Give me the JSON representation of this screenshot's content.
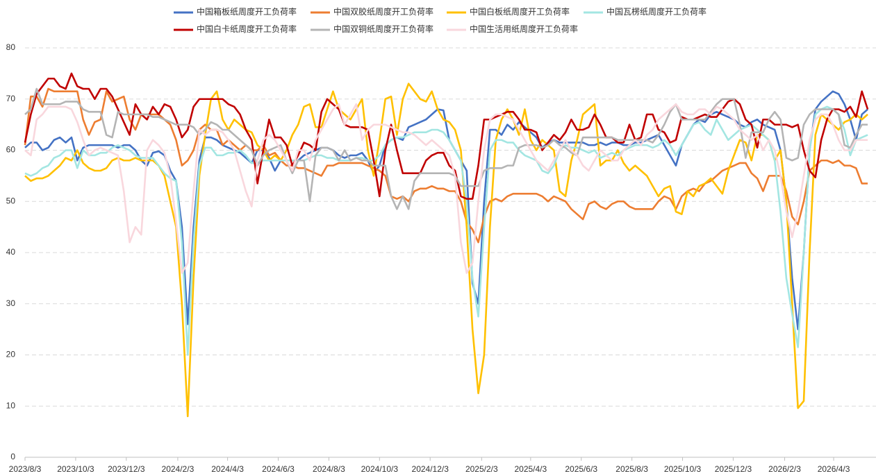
{
  "chart_data": {
    "type": "line",
    "grid": true,
    "legend": "top",
    "xlim": [
      "2023/8/3",
      "2026/5/24"
    ],
    "xticks": [
      "2023/8/3",
      "2023/10/3",
      "2023/12/3",
      "2024/2/3",
      "2024/4/3",
      "2024/6/3",
      "2024/8/3",
      "2024/10/3",
      "2024/12/3",
      "2025/2/3",
      "2025/4/3",
      "2025/6/3",
      "2025/8/3",
      "2025/10/3",
      "2025/12/3",
      "2026/2/3",
      "2026/4/3"
    ],
    "ylim": [
      0,
      80
    ],
    "yticks": [
      0,
      10,
      20,
      30,
      40,
      50,
      60,
      70,
      80
    ],
    "x": [
      "2023/8/3",
      "2023/8/10",
      "2023/8/17",
      "2023/8/24",
      "2023/8/31",
      "2023/9/7",
      "2023/9/14",
      "2023/9/21",
      "2023/9/28",
      "2023/10/5",
      "2023/10/12",
      "2023/10/19",
      "2023/10/26",
      "2023/11/2",
      "2023/11/9",
      "2023/11/16",
      "2023/11/23",
      "2023/11/30",
      "2023/12/7",
      "2023/12/14",
      "2023/12/21",
      "2023/12/28",
      "2024/1/4",
      "2024/1/11",
      "2024/1/18",
      "2024/1/25",
      "2024/2/1",
      "2024/2/8",
      "2024/2/15",
      "2024/2/22",
      "2024/2/29",
      "2024/3/7",
      "2024/3/14",
      "2024/3/21",
      "2024/3/28",
      "2024/4/4",
      "2024/4/11",
      "2024/4/18",
      "2024/4/25",
      "2024/5/2",
      "2024/5/9",
      "2024/5/16",
      "2024/5/23",
      "2024/5/30",
      "2024/6/6",
      "2024/6/13",
      "2024/6/20",
      "2024/6/27",
      "2024/7/4",
      "2024/7/11",
      "2024/7/18",
      "2024/7/25",
      "2024/8/1",
      "2024/8/8",
      "2024/8/15",
      "2024/8/22",
      "2024/8/29",
      "2024/9/5",
      "2024/9/12",
      "2024/9/19",
      "2024/9/26",
      "2024/10/3",
      "2024/10/10",
      "2024/10/17",
      "2024/10/24",
      "2024/10/31",
      "2024/11/7",
      "2024/11/14",
      "2024/11/21",
      "2024/11/28",
      "2024/12/5",
      "2024/12/12",
      "2024/12/19",
      "2024/12/26",
      "2025/1/2",
      "2025/1/9",
      "2025/1/16",
      "2025/1/23",
      "2025/1/30",
      "2025/2/6",
      "2025/2/13",
      "2025/2/20",
      "2025/2/27",
      "2025/3/6",
      "2025/3/13",
      "2025/3/20",
      "2025/3/27",
      "2025/4/3",
      "2025/4/10",
      "2025/4/17",
      "2025/4/24",
      "2025/5/1",
      "2025/5/8",
      "2025/5/15",
      "2025/5/22",
      "2025/5/29",
      "2025/6/5",
      "2025/6/12",
      "2025/6/19",
      "2025/6/26",
      "2025/7/3",
      "2025/7/10",
      "2025/7/17",
      "2025/7/24",
      "2025/7/31",
      "2025/8/7",
      "2025/8/14",
      "2025/8/21",
      "2025/8/28",
      "2025/9/4",
      "2025/9/11",
      "2025/9/18",
      "2025/9/25",
      "2025/10/2",
      "2025/10/9",
      "2025/10/16",
      "2025/10/23",
      "2025/10/30",
      "2025/11/6",
      "2025/11/13",
      "2025/11/20",
      "2025/11/27",
      "2025/12/4",
      "2025/12/11",
      "2025/12/18",
      "2025/12/25",
      "2026/1/1",
      "2026/1/8",
      "2026/1/15",
      "2026/1/22",
      "2026/1/29",
      "2026/2/5",
      "2026/2/12",
      "2026/2/19",
      "2026/2/26",
      "2026/3/5",
      "2026/3/12",
      "2026/3/19",
      "2026/3/26",
      "2026/4/2",
      "2026/4/9",
      "2026/4/16",
      "2026/4/23",
      "2026/4/30",
      "2026/5/7",
      "2026/5/14"
    ],
    "series": [
      {
        "name": "中国箱板纸周度开工负荷率",
        "color": "#4472c4",
        "values": [
          60.5,
          61.5,
          61.5,
          60,
          60.5,
          62,
          62.5,
          61.5,
          62.5,
          58,
          60.5,
          61,
          61,
          61,
          61,
          61,
          60.5,
          61,
          61,
          60,
          58,
          57,
          59.5,
          59.8,
          59,
          56,
          54,
          45,
          26,
          45,
          58,
          62.5,
          62.5,
          62,
          61,
          60.5,
          60,
          59.5,
          58.5,
          57.5,
          60,
          60,
          58.5,
          56,
          58,
          58,
          58,
          58,
          59,
          59.5,
          60,
          60.5,
          60.5,
          60,
          59,
          58.5,
          59,
          59,
          59.5,
          58,
          55.5,
          57,
          61,
          62,
          62.5,
          62,
          64.5,
          65,
          65.5,
          66,
          67,
          68,
          67.8,
          62,
          60,
          58,
          56,
          34,
          30,
          50,
          64,
          64,
          63,
          65,
          64,
          65.5,
          64.5,
          63.5,
          62.5,
          60.5,
          61.5,
          62,
          61.5,
          61.5,
          61.5,
          61.5,
          61.5,
          61,
          61,
          61.5,
          61,
          61.5,
          61.5,
          61,
          61,
          61.5,
          61.5,
          62,
          62.5,
          63,
          61,
          59,
          57,
          61,
          63,
          65,
          66,
          65.5,
          67,
          67.5,
          67,
          66.5,
          66,
          65,
          64.5,
          65.5,
          66,
          65,
          64.5,
          64,
          60,
          50,
          35,
          25,
          40,
          60,
          68,
          69.5,
          70.5,
          71.5,
          71,
          69,
          66,
          62,
          67,
          68
        ]
      },
      {
        "name": "中国双胶纸周度开工负荷率",
        "color": "#ed7d31",
        "values": [
          61,
          70.5,
          70.5,
          68.5,
          72,
          71.5,
          71.5,
          71.5,
          71.5,
          71.5,
          66,
          63,
          65.5,
          66,
          71.5,
          69.5,
          70,
          70.5,
          66,
          64,
          67,
          67,
          67,
          67,
          66,
          65,
          62,
          57,
          58,
          60,
          64,
          65,
          64,
          64,
          61,
          62,
          61,
          60,
          61,
          60,
          60,
          61,
          59,
          59.5,
          58,
          57,
          57,
          56.5,
          56.5,
          56,
          55.5,
          55,
          57,
          57,
          57.5,
          57.5,
          57.5,
          57.5,
          57.5,
          57,
          56.5,
          56,
          55,
          51,
          50.5,
          51,
          50,
          52,
          52.5,
          52.5,
          53,
          52.5,
          52.5,
          52,
          52,
          50,
          46,
          44.5,
          42,
          47,
          50,
          50.5,
          50,
          51,
          51.5,
          51.5,
          51.5,
          51.5,
          51.5,
          51,
          50,
          51,
          50.5,
          50,
          48.5,
          47.5,
          46.5,
          49.5,
          50,
          49,
          48.5,
          49.5,
          50,
          50,
          49,
          48.5,
          48.5,
          48.5,
          48.5,
          50,
          51,
          50.5,
          48.5,
          51,
          52,
          52.5,
          52,
          53.5,
          54,
          55,
          56,
          56.5,
          57,
          57.5,
          57.5,
          55.5,
          54.5,
          52,
          55,
          55,
          55,
          52,
          47,
          45.5,
          50,
          56,
          57,
          58,
          58,
          57.5,
          58,
          57,
          57,
          56.5,
          53.5,
          53.5
        ]
      },
      {
        "name": "中国白板纸周度开工负荷率",
        "color": "#ffc000",
        "values": [
          55,
          54,
          54.5,
          54.5,
          55,
          56,
          57,
          58.5,
          58,
          60,
          57.5,
          56.5,
          56,
          56,
          56.5,
          58,
          58.5,
          58,
          58,
          58.5,
          58,
          58,
          58,
          57,
          55,
          50,
          45,
          30,
          8,
          35,
          55,
          63,
          70,
          71.5,
          66,
          64,
          66,
          65,
          64,
          63.5,
          61,
          60,
          58,
          59,
          58,
          60,
          63,
          65,
          68.5,
          69,
          64.5,
          64.5,
          68,
          71.5,
          68,
          67,
          66,
          68,
          70,
          60,
          55,
          62,
          70,
          70.5,
          63,
          70,
          73,
          71.5,
          70,
          69.5,
          71.5,
          68,
          66,
          65.5,
          64,
          60,
          45,
          25,
          12.5,
          20,
          45,
          62,
          66,
          68,
          66,
          63,
          68,
          62,
          60,
          62,
          61,
          60,
          52,
          51,
          58,
          62,
          67,
          68,
          69,
          57,
          58,
          58,
          60,
          57.5,
          56,
          57,
          56,
          55,
          53,
          51,
          52.5,
          53,
          48,
          47.5,
          52,
          51,
          53,
          53.5,
          54.5,
          53,
          51.5,
          56,
          59,
          62,
          61.5,
          58,
          63,
          63,
          62,
          58,
          60,
          50,
          30,
          9.6,
          11,
          40,
          63,
          67,
          66,
          65,
          64,
          65.5,
          66,
          67,
          66,
          67
        ]
      },
      {
        "name": "中国瓦楞纸周度开工负荷率",
        "color": "#a3e6e2",
        "values": [
          55.5,
          55,
          55.5,
          56.5,
          57,
          58.5,
          59,
          60,
          60,
          56.5,
          60,
          59,
          59,
          59.5,
          59.5,
          60.5,
          61,
          60.5,
          60,
          59,
          58.5,
          58.5,
          58.5,
          57,
          55.5,
          54.5,
          54,
          42,
          20,
          42,
          57,
          60.5,
          60.5,
          59,
          59,
          59.5,
          59.5,
          60,
          59,
          57.5,
          57.5,
          58,
          58,
          58,
          58,
          58,
          58,
          58,
          58,
          58.5,
          59,
          59,
          58.5,
          58.5,
          58,
          58,
          58,
          58.5,
          58.5,
          58,
          58,
          59,
          61,
          62,
          62.5,
          62.5,
          63,
          63.5,
          63.5,
          63.5,
          64,
          64,
          63.5,
          62,
          60,
          58,
          50,
          35,
          27.5,
          45,
          60,
          62,
          62,
          61.5,
          61.5,
          60,
          59,
          58.5,
          58,
          56,
          55.5,
          57,
          60,
          61,
          60.5,
          60.5,
          60,
          59.5,
          60,
          58.5,
          59,
          59.5,
          59,
          60,
          60.5,
          61,
          61,
          61,
          60.5,
          61,
          62,
          61,
          59,
          61,
          63,
          65,
          65.5,
          64,
          63,
          66,
          64,
          62,
          63,
          64,
          64.5,
          65,
          64,
          63,
          62,
          58,
          48,
          35,
          28,
          21.5,
          40,
          60,
          67,
          68,
          68.5,
          68,
          67,
          64,
          59,
          62,
          62.5,
          63
        ]
      },
      {
        "name": "中国白卡纸周度开工负荷率",
        "color": "#c00000",
        "values": [
          61.5,
          67,
          71,
          72.5,
          74,
          74,
          72.5,
          72,
          75,
          72.5,
          72,
          72,
          70,
          72,
          72,
          70.5,
          68,
          65.5,
          63,
          69,
          67,
          66,
          68.5,
          67,
          69,
          68.5,
          66,
          62.5,
          64,
          68.5,
          70,
          70,
          70,
          70,
          70,
          69,
          68.5,
          67,
          64,
          62,
          53.5,
          60,
          66,
          62.5,
          62.5,
          61,
          57,
          59,
          61.5,
          61,
          60,
          67.5,
          70,
          69,
          68,
          65,
          64.5,
          64.5,
          64.5,
          64,
          58,
          51,
          60,
          65,
          60,
          55.5,
          55.5,
          55.5,
          55.5,
          58,
          59,
          59.5,
          59.5,
          57,
          56,
          51,
          50.5,
          50.5,
          57,
          66,
          66,
          66.5,
          67,
          67.5,
          67.5,
          66,
          64,
          64,
          63.5,
          60,
          61.5,
          63,
          62,
          63.5,
          66,
          64,
          64,
          64.5,
          67,
          65,
          62.5,
          62.5,
          61.5,
          61.5,
          65,
          62,
          62.5,
          67,
          67,
          64,
          63.5,
          61.5,
          62,
          66.5,
          66,
          66,
          66.5,
          67,
          66.5,
          66.5,
          68,
          69.5,
          70,
          69,
          66,
          65,
          60.5,
          66,
          66,
          65,
          65,
          65,
          64.5,
          65,
          60,
          56,
          54.7,
          62,
          66,
          68,
          68,
          67.5,
          68.5,
          66.5,
          71.5,
          68
        ]
      },
      {
        "name": "中国双铜纸周度开工负荷率",
        "color": "#b4b4b4",
        "values": [
          67,
          68,
          72,
          69,
          69,
          69,
          69,
          69.5,
          69.5,
          69.5,
          68,
          67.5,
          67.5,
          67.5,
          63,
          62.5,
          67.5,
          67,
          67,
          67,
          67,
          67,
          66.5,
          66.5,
          66,
          65.5,
          65,
          65,
          65,
          64.5,
          63,
          64,
          65.5,
          65,
          64,
          64,
          63,
          62,
          61,
          60,
          57,
          59,
          60,
          60.5,
          61,
          58,
          55.5,
          58,
          58,
          50,
          59,
          60.5,
          60.5,
          60,
          58,
          60,
          58,
          58.5,
          58,
          58,
          57,
          57,
          57,
          51,
          48.5,
          51,
          48.5,
          54,
          55.5,
          55.5,
          55.5,
          55.5,
          55.5,
          55.5,
          55,
          53,
          53,
          53,
          53,
          56,
          56.5,
          56.5,
          56.5,
          57,
          57,
          60.5,
          61,
          61,
          61,
          60.5,
          61,
          62,
          61,
          60.5,
          59.5,
          59,
          62.5,
          62.5,
          62.5,
          62.5,
          62.5,
          62.5,
          62,
          62,
          62,
          62,
          62,
          62,
          61.5,
          63,
          65,
          67.5,
          69,
          66,
          66,
          66,
          66,
          66,
          67.5,
          69,
          70,
          70,
          70,
          65,
          58.5,
          63.5,
          63.5,
          63.5,
          66,
          67.5,
          66,
          58.5,
          58,
          58.5,
          65,
          67,
          68,
          68,
          68,
          68,
          67,
          61,
          60.5,
          63,
          65,
          65
        ]
      },
      {
        "name": "中国生活用纸周度开工负荷率",
        "color": "#f9d7dd",
        "values": [
          60,
          59,
          66,
          67,
          68.5,
          68.5,
          68.5,
          68.5,
          68,
          65.5,
          62,
          59,
          60,
          60.5,
          60,
          59.5,
          59,
          52,
          42,
          45,
          43.5,
          60,
          62,
          61,
          59.5,
          55,
          46,
          36,
          38,
          52,
          64,
          63,
          64,
          64,
          63.5,
          62,
          60,
          56,
          52,
          49,
          58,
          62,
          63,
          62,
          60,
          58,
          56,
          60,
          60,
          58,
          62,
          64,
          66,
          68,
          69,
          65,
          67,
          69,
          62,
          64,
          65,
          65,
          65,
          64.5,
          64,
          63.5,
          63.5,
          63,
          62,
          61,
          62,
          61,
          60,
          59,
          55,
          42,
          36,
          38,
          50,
          60,
          66,
          67,
          67,
          66.5,
          66,
          64,
          62,
          60,
          58,
          57,
          56,
          58,
          60,
          62,
          60,
          59,
          57,
          56,
          58,
          60,
          59,
          58,
          58,
          60,
          61,
          62,
          61,
          63,
          64,
          66,
          67,
          68,
          69,
          67.5,
          67,
          67,
          68,
          68,
          67,
          68.5,
          68,
          67,
          66,
          64,
          63,
          62,
          63,
          60,
          62,
          60,
          55,
          48,
          43,
          48,
          55,
          62,
          66,
          67,
          67,
          65,
          62,
          60,
          60,
          62,
          62,
          62
        ]
      }
    ]
  }
}
